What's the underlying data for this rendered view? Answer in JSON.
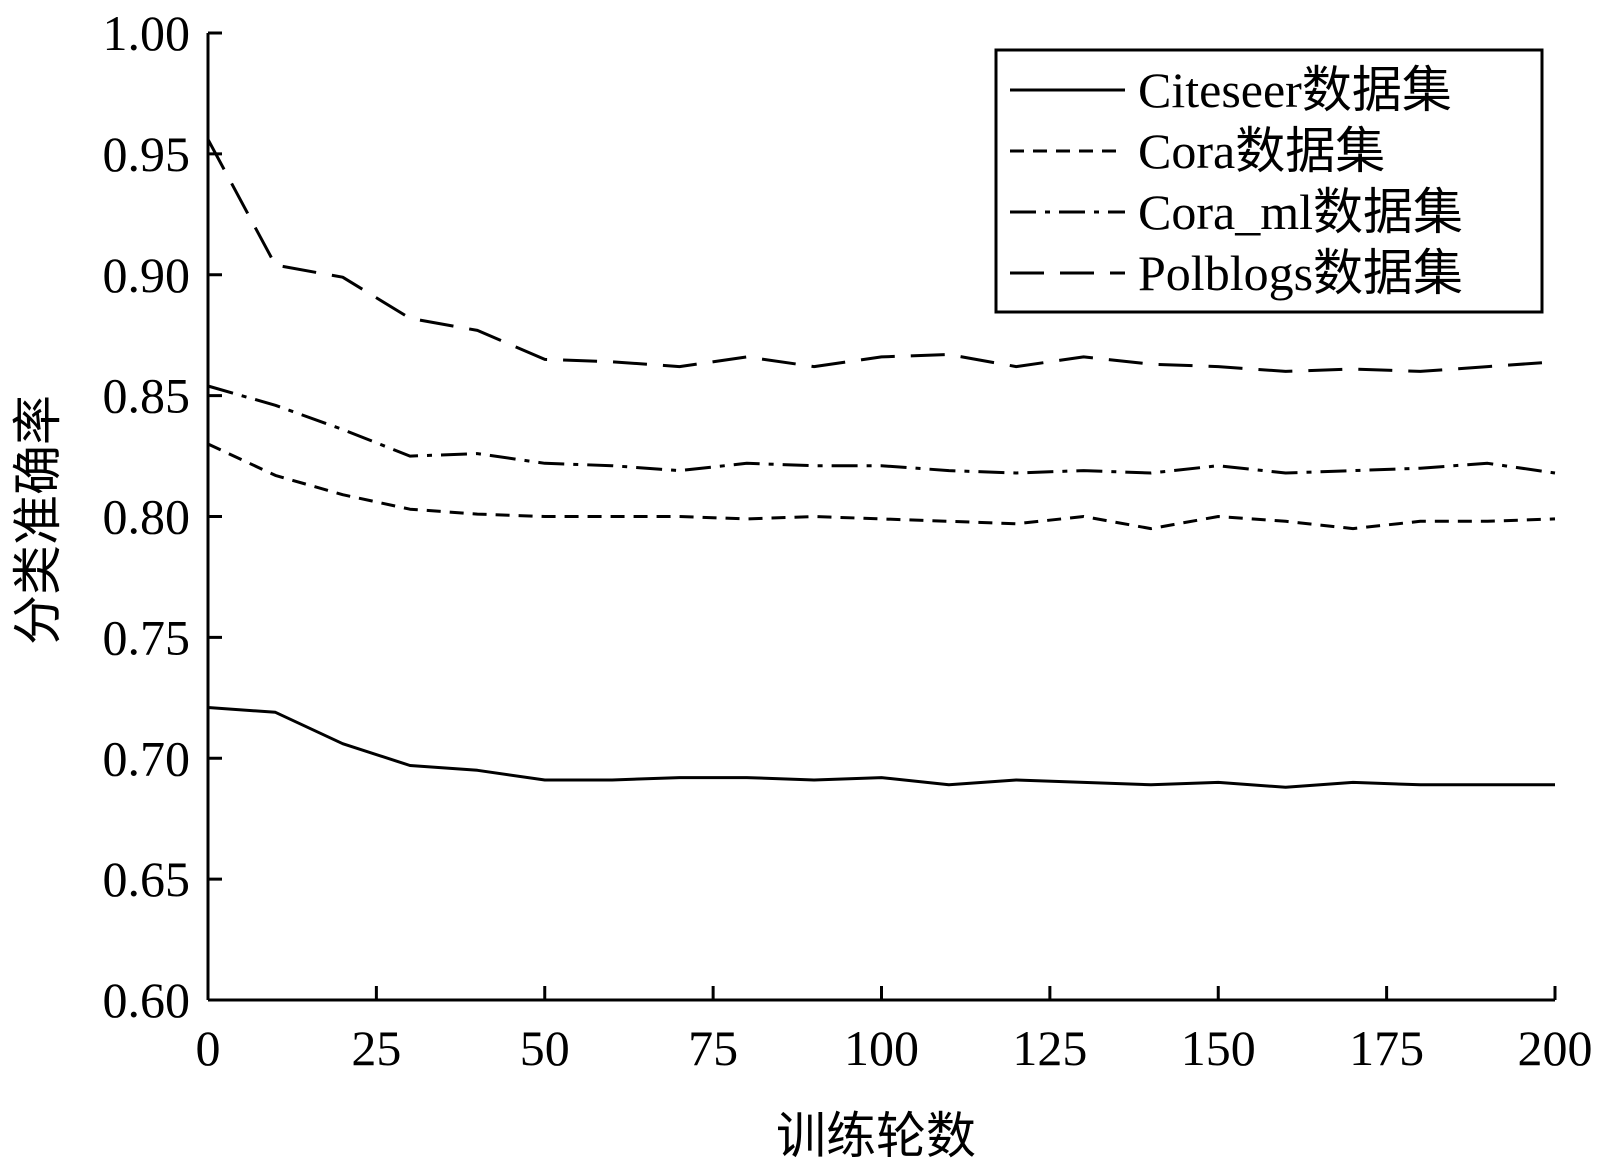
{
  "chart_data": {
    "type": "line",
    "title": "",
    "xlabel": "训练轮数",
    "ylabel": "分类准确率",
    "xlim": [
      0,
      200
    ],
    "ylim": [
      0.6,
      1.0
    ],
    "x_ticks": [
      "0",
      "25",
      "50",
      "75",
      "100",
      "125",
      "150",
      "175",
      "200"
    ],
    "y_ticks": [
      "0.60",
      "0.65",
      "0.70",
      "0.75",
      "0.80",
      "0.85",
      "0.90",
      "0.95",
      "1.00"
    ],
    "x_tick_values": [
      0,
      25,
      50,
      75,
      100,
      125,
      150,
      175,
      200
    ],
    "y_tick_values": [
      0.6,
      0.65,
      0.7,
      0.75,
      0.8,
      0.85,
      0.9,
      0.95,
      1.0
    ],
    "grid": false,
    "legend_position": "top-right",
    "x": [
      0,
      10,
      20,
      30,
      40,
      50,
      60,
      70,
      80,
      90,
      100,
      110,
      120,
      130,
      140,
      150,
      160,
      170,
      180,
      190,
      200
    ],
    "series": [
      {
        "name": "Citeseer数据集",
        "style": "solid",
        "color": "#000000",
        "values": [
          0.721,
          0.719,
          0.706,
          0.697,
          0.695,
          0.691,
          0.691,
          0.692,
          0.692,
          0.691,
          0.692,
          0.689,
          0.691,
          0.69,
          0.689,
          0.69,
          0.688,
          0.69,
          0.689,
          0.689,
          0.689
        ]
      },
      {
        "name": "Cora数据集",
        "style": "short-dash",
        "color": "#000000",
        "values": [
          0.83,
          0.817,
          0.809,
          0.803,
          0.801,
          0.8,
          0.8,
          0.8,
          0.799,
          0.8,
          0.799,
          0.798,
          0.797,
          0.8,
          0.795,
          0.8,
          0.798,
          0.795,
          0.798,
          0.798,
          0.799
        ]
      },
      {
        "name": "Cora_ml数据集",
        "style": "dash-dot",
        "color": "#000000",
        "values": [
          0.854,
          0.846,
          0.836,
          0.825,
          0.826,
          0.822,
          0.821,
          0.819,
          0.822,
          0.821,
          0.821,
          0.819,
          0.818,
          0.819,
          0.818,
          0.821,
          0.818,
          0.819,
          0.82,
          0.822,
          0.818
        ]
      },
      {
        "name": "Polblogs数据集",
        "style": "long-dash",
        "color": "#000000",
        "values": [
          0.956,
          0.904,
          0.899,
          0.882,
          0.877,
          0.865,
          0.864,
          0.862,
          0.866,
          0.862,
          0.866,
          0.867,
          0.862,
          0.866,
          0.863,
          0.862,
          0.86,
          0.861,
          0.86,
          0.862,
          0.864
        ]
      }
    ]
  }
}
